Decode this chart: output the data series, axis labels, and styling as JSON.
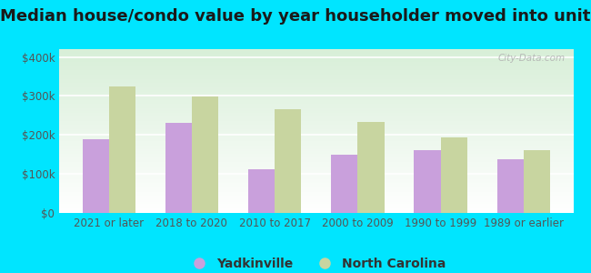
{
  "title": "Median house/condo value by year householder moved into unit",
  "categories": [
    "2021 or later",
    "2018 to 2020",
    "2010 to 2017",
    "2000 to 2009",
    "1990 to 1999",
    "1989 or earlier"
  ],
  "yadkinville_values": [
    190000,
    230000,
    113000,
    150000,
    162000,
    137000
  ],
  "nc_values": [
    325000,
    298000,
    265000,
    234000,
    193000,
    160000
  ],
  "yadkinville_color": "#c9a0dc",
  "nc_color": "#c8d5a0",
  "background_outer": "#00e5ff",
  "yticks": [
    0,
    100000,
    200000,
    300000,
    400000
  ],
  "ytick_labels": [
    "$0",
    "$100k",
    "$200k",
    "$300k",
    "$400k"
  ],
  "ylim": [
    0,
    420000
  ],
  "legend_labels": [
    "Yadkinville",
    "North Carolina"
  ],
  "watermark": "City-Data.com",
  "title_fontsize": 13,
  "tick_fontsize": 8.5,
  "legend_fontsize": 10,
  "bar_width": 0.32
}
